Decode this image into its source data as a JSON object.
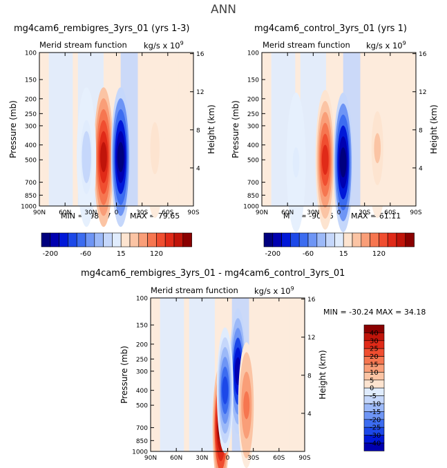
{
  "page_title": "ANN",
  "colors": {
    "neg": [
      "#00007e",
      "#0000b0",
      "#0018d8",
      "#1c48e8",
      "#3c6cf0",
      "#6e95f5",
      "#9cb9f8",
      "#c5d7fb",
      "#e0ecfd"
    ],
    "pos": [
      "#fde4d0",
      "#fbc4a4",
      "#f99e78",
      "#f67650",
      "#f04e30",
      "#e02a18",
      "#c0140a",
      "#8a0000"
    ],
    "neutral": "#ffffff"
  },
  "chart_data": [
    {
      "type": "heatmap",
      "title": "mg4cam6_rembigres_3yrs_01 (yrs 1-3)",
      "subtitle_left": "Merid stream function",
      "units": "kg/s x 10",
      "units_exp": "9",
      "xlabel": "",
      "ylabel": "Pressure (mb)",
      "y2label": "Height (km)",
      "x_ticks": [
        "90N",
        "60N",
        "30N",
        "0",
        "30S",
        "60S",
        "90S"
      ],
      "y_ticks": [
        "100",
        "150",
        "200",
        "250",
        "300",
        "400",
        "500",
        "700",
        "850",
        "1000"
      ],
      "y2_ticks": [
        "16",
        "12",
        "8",
        "4"
      ],
      "min_label": "MIN = -98.17",
      "max_label": "MAX = 79.65",
      "min": -98.17,
      "max": 79.65,
      "colorbar_ticks": [
        "-200",
        "-60",
        "15",
        "120"
      ],
      "cells": [
        {
          "lat": 15,
          "p": 480,
          "v": 79.65
        },
        {
          "lat": -5,
          "p": 480,
          "v": -98.17
        },
        {
          "lat": 35,
          "p": 480,
          "v": -15
        },
        {
          "lat": -45,
          "p": 420,
          "v": 10
        }
      ]
    },
    {
      "type": "heatmap",
      "title": "mg4cam6_control_3yrs_01 (yrs 1)",
      "subtitle_left": "Merid stream function",
      "units": "kg/s x 10",
      "units_exp": "9",
      "xlabel": "",
      "ylabel": "Pressure (mb)",
      "y2label": "Height (km)",
      "x_ticks": [
        "90N",
        "60N",
        "30N",
        "0",
        "30S",
        "60S",
        "90S"
      ],
      "y_ticks": [
        "100",
        "150",
        "200",
        "250",
        "300",
        "400",
        "500",
        "700",
        "850",
        "1000"
      ],
      "y2_ticks": [
        "16",
        "12",
        "8",
        "4"
      ],
      "min_label": "MIN = -90.16",
      "max_label": "MAX = 61.11",
      "min": -90.16,
      "max": 61.11,
      "colorbar_ticks": [
        "-200",
        "-60",
        "15",
        "120"
      ],
      "cells": [
        {
          "lat": 16,
          "p": 500,
          "v": 61.11
        },
        {
          "lat": -5,
          "p": 520,
          "v": -90.16
        },
        {
          "lat": 50,
          "p": 520,
          "v": -8
        },
        {
          "lat": -45,
          "p": 420,
          "v": 12
        }
      ]
    },
    {
      "type": "heatmap",
      "title": "mg4cam6_rembigres_3yrs_01 - mg4cam6_control_3yrs_01",
      "subtitle_left": "Merid stream function",
      "units": "kg/s x 10",
      "units_exp": "9",
      "xlabel": "",
      "ylabel": "Pressure (mb)",
      "y2label": "Height (km)",
      "x_ticks": [
        "90N",
        "60N",
        "30N",
        "0",
        "30S",
        "60S",
        "90S"
      ],
      "y_ticks": [
        "100",
        "150",
        "200",
        "250",
        "300",
        "400",
        "500",
        "700",
        "850",
        "1000"
      ],
      "y2_ticks": [
        "16",
        "12",
        "8",
        "4"
      ],
      "min_max_label": "MIN = -30.24   MAX =  34.18",
      "min": -30.24,
      "max": 34.18,
      "colorbar_ticks": [
        "40",
        "30",
        "25",
        "20",
        "15",
        "10",
        "5",
        "0",
        "-5",
        "-10",
        "-15",
        "-20",
        "-25",
        "-30",
        "-40"
      ],
      "cells": [
        {
          "lat": 8,
          "p": 700,
          "v": 34.18
        },
        {
          "lat": -12,
          "p": 300,
          "v": -30.24
        },
        {
          "lat": 3,
          "p": 400,
          "v": -20
        },
        {
          "lat": -22,
          "p": 500,
          "v": 15
        }
      ]
    }
  ]
}
